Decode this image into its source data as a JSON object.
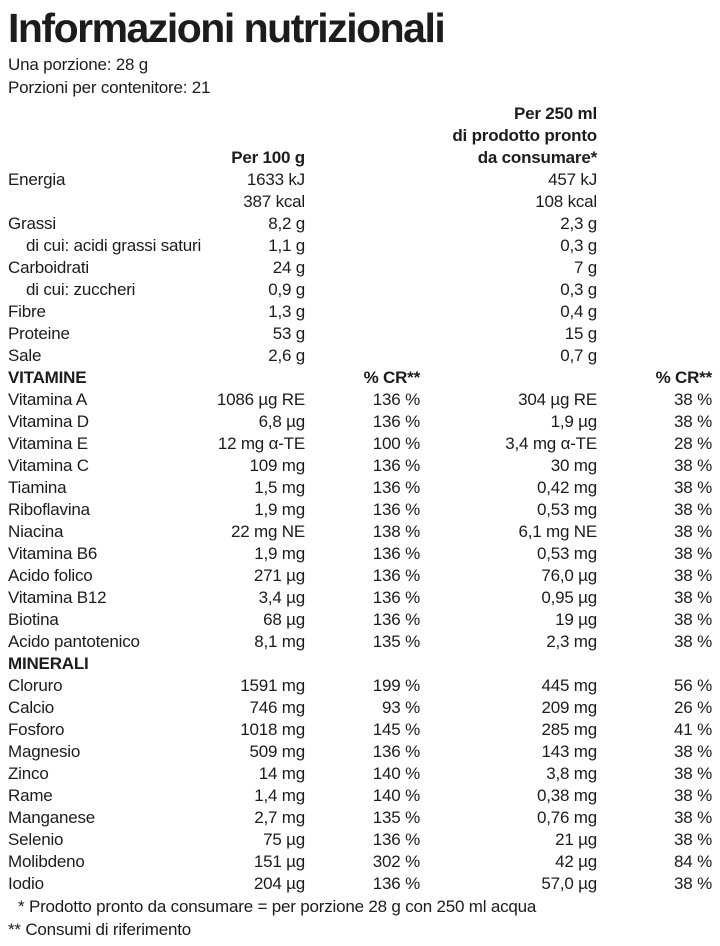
{
  "title": "Informazioni nutrizionali",
  "serving": {
    "per_portion": "Una porzione: 28 g",
    "per_container": "Porzioni per contenitore: 21"
  },
  "columns": {
    "per_100g": "Per 100 g",
    "per_250ml_line1": "Per 250 ml",
    "per_250ml_line2": "di prodotto pronto",
    "per_250ml_line3": "da consumare*"
  },
  "macros": [
    {
      "label": "Energia",
      "v100": "1633 kJ",
      "v250": "457 kJ"
    },
    {
      "label": "",
      "v100": "387 kcal",
      "v250": "108 kcal"
    },
    {
      "label": "Grassi",
      "v100": "8,2 g",
      "v250": "2,3 g"
    },
    {
      "label": "di cui: acidi grassi saturi",
      "v100": "1,1 g",
      "v250": "0,3 g",
      "indent": true
    },
    {
      "label": "Carboidrati",
      "v100": "24 g",
      "v250": "7 g"
    },
    {
      "label": "di cui: zuccheri",
      "v100": "0,9 g",
      "v250": "0,3 g",
      "indent": true
    },
    {
      "label": "Fibre",
      "v100": "1,3 g",
      "v250": "0,4 g"
    },
    {
      "label": "Proteine",
      "v100": "53 g",
      "v250": "15 g"
    },
    {
      "label": "Sale",
      "v100": "2,6 g",
      "v250": "0,7 g"
    }
  ],
  "vitamins_section": {
    "title": "VITAMINE",
    "cr_header_1": "% CR**",
    "cr_header_2": "% CR**"
  },
  "vitamins": [
    {
      "label": "Vitamina A",
      "v100": "1086 µg RE",
      "cr100": "136 %",
      "v250": "304 µg RE",
      "cr250": "38 %"
    },
    {
      "label": "Vitamina D",
      "v100": "6,8 µg",
      "cr100": "136 %",
      "v250": "1,9 µg",
      "cr250": "38 %"
    },
    {
      "label": "Vitamina E",
      "v100": "12 mg α-TE",
      "cr100": "100 %",
      "v250": "3,4 mg α-TE",
      "cr250": "28 %"
    },
    {
      "label": "Vitamina C",
      "v100": "109 mg",
      "cr100": "136 %",
      "v250": "30 mg",
      "cr250": "38 %"
    },
    {
      "label": "Tiamina",
      "v100": "1,5 mg",
      "cr100": "136 %",
      "v250": "0,42 mg",
      "cr250": "38 %"
    },
    {
      "label": "Riboflavina",
      "v100": "1,9 mg",
      "cr100": "136 %",
      "v250": "0,53 mg",
      "cr250": "38 %"
    },
    {
      "label": "Niacina",
      "v100": "22 mg NE",
      "cr100": "138 %",
      "v250": "6,1 mg NE",
      "cr250": "38 %"
    },
    {
      "label": "Vitamina B6",
      "v100": "1,9 mg",
      "cr100": "136 %",
      "v250": "0,53 mg",
      "cr250": "38 %"
    },
    {
      "label": "Acido folico",
      "v100": "271 µg",
      "cr100": "136 %",
      "v250": "76,0 µg",
      "cr250": "38 %"
    },
    {
      "label": "Vitamina B12",
      "v100": "3,4 µg",
      "cr100": "136 %",
      "v250": "0,95 µg",
      "cr250": "38 %"
    },
    {
      "label": "Biotina",
      "v100": "68 µg",
      "cr100": "136 %",
      "v250": "19 µg",
      "cr250": "38 %"
    },
    {
      "label": "Acido pantotenico",
      "v100": "8,1 mg",
      "cr100": "135 %",
      "v250": "2,3 mg",
      "cr250": "38 %"
    }
  ],
  "minerals_section": {
    "title": "MINERALI"
  },
  "minerals": [
    {
      "label": "Cloruro",
      "v100": "1591 mg",
      "cr100": "199 %",
      "v250": "445 mg",
      "cr250": "56 %"
    },
    {
      "label": "Calcio",
      "v100": "746 mg",
      "cr100": "93 %",
      "v250": "209 mg",
      "cr250": "26 %"
    },
    {
      "label": "Fosforo",
      "v100": "1018 mg",
      "cr100": "145 %",
      "v250": "285 mg",
      "cr250": "41 %"
    },
    {
      "label": "Magnesio",
      "v100": "509 mg",
      "cr100": "136 %",
      "v250": "143 mg",
      "cr250": "38 %"
    },
    {
      "label": "Zinco",
      "v100": "14 mg",
      "cr100": "140 %",
      "v250": "3,8 mg",
      "cr250": "38 %"
    },
    {
      "label": "Rame",
      "v100": "1,4 mg",
      "cr100": "140 %",
      "v250": "0,38 mg",
      "cr250": "38 %"
    },
    {
      "label": "Manganese",
      "v100": "2,7 mg",
      "cr100": "135 %",
      "v250": "0,76 mg",
      "cr250": "38 %"
    },
    {
      "label": "Selenio",
      "v100": "75 µg",
      "cr100": "136 %",
      "v250": "21 µg",
      "cr250": "38 %"
    },
    {
      "label": "Molibdeno",
      "v100": "151 µg",
      "cr100": "302 %",
      "v250": "42 µg",
      "cr250": "84 %"
    },
    {
      "label": "Iodio",
      "v100": "204 µg",
      "cr100": "136 %",
      "v250": "57,0 µg",
      "cr250": "38 %"
    }
  ],
  "footnotes": {
    "fn1": "* Prodotto pronto da consumare = per porzione 28 g con 250 ml acqua",
    "fn2": "** Consumi di riferimento"
  },
  "colors": {
    "text": "#1c1c1c",
    "background": "#ffffff"
  }
}
